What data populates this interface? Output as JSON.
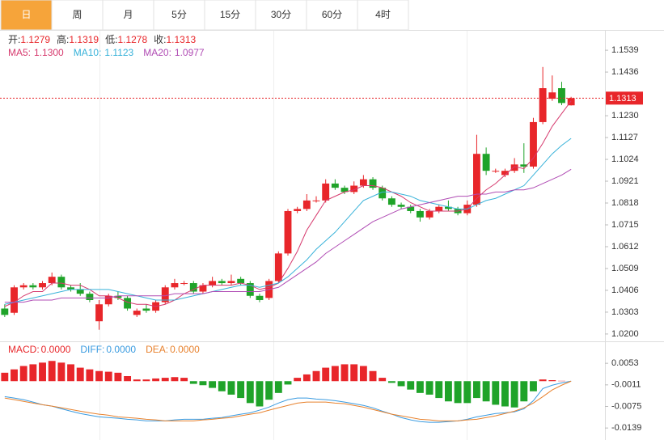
{
  "tabs": [
    "日",
    "周",
    "月",
    "5分",
    "15分",
    "30分",
    "60分",
    "4时"
  ],
  "active_tab": 0,
  "chart_data": [
    {
      "type": "candlestick",
      "up_color": "#e8262a",
      "down_color": "#1fa329",
      "last_price_color": "#e8262a",
      "ohlc_labels": [
        "开:",
        "高:",
        "低:",
        "收:"
      ],
      "ylim": [
        1.0173,
        1.1631
      ],
      "yticks": [
        {
          "value": 1.02,
          "label": "1.0200"
        },
        1.0303,
        1.0406,
        1.0509,
        1.0612,
        1.0715,
        1.0818,
        1.0921,
        1.1024,
        1.1127,
        {
          "value": 1.123,
          "label": "1.1230"
        },
        1.1436,
        1.1539
      ],
      "candles": [
        [
          1.032,
          1.034,
          1.028,
          1.029
        ],
        [
          1.03,
          1.043,
          1.029,
          1.042
        ],
        [
          1.042,
          1.044,
          1.041,
          1.043
        ],
        [
          1.043,
          1.044,
          1.041,
          1.042
        ],
        [
          1.042,
          1.045,
          1.041,
          1.044
        ],
        [
          1.044,
          1.049,
          1.043,
          1.047
        ],
        [
          1.047,
          1.048,
          1.041,
          1.042
        ],
        [
          1.042,
          1.043,
          1.04,
          1.041
        ],
        [
          1.041,
          1.044,
          1.038,
          1.039
        ],
        [
          1.039,
          1.04,
          1.035,
          1.036
        ],
        [
          1.026,
          1.036,
          1.022,
          1.034
        ],
        [
          1.034,
          1.039,
          1.033,
          1.038
        ],
        [
          1.038,
          1.04,
          1.036,
          1.037
        ],
        [
          1.037,
          1.038,
          1.031,
          1.032
        ],
        [
          1.029,
          1.032,
          1.028,
          1.031
        ],
        [
          1.032,
          1.034,
          1.03,
          1.031
        ],
        [
          1.031,
          1.036,
          1.03,
          1.035
        ],
        [
          1.035,
          1.043,
          1.034,
          1.042
        ],
        [
          1.042,
          1.046,
          1.041,
          1.044
        ],
        [
          1.044,
          1.045,
          1.043,
          1.044
        ],
        [
          1.044,
          1.045,
          1.039,
          1.04
        ],
        [
          1.04,
          1.044,
          1.039,
          1.043
        ],
        [
          1.043,
          1.047,
          1.042,
          1.045
        ],
        [
          1.045,
          1.046,
          1.043,
          1.044
        ],
        [
          1.044,
          1.048,
          1.043,
          1.045
        ],
        [
          1.046,
          1.047,
          1.043,
          1.044
        ],
        [
          1.044,
          1.045,
          1.037,
          1.038
        ],
        [
          1.038,
          1.039,
          1.035,
          1.036
        ],
        [
          1.037,
          1.046,
          1.036,
          1.045
        ],
        [
          1.045,
          1.059,
          1.044,
          1.058
        ],
        [
          1.058,
          1.079,
          1.057,
          1.078
        ],
        [
          1.078,
          1.08,
          1.077,
          1.079
        ],
        [
          1.079,
          1.086,
          1.078,
          1.083
        ],
        [
          1.083,
          1.085,
          1.082,
          1.083
        ],
        [
          1.083,
          1.093,
          1.082,
          1.091
        ],
        [
          1.091,
          1.093,
          1.088,
          1.089
        ],
        [
          1.089,
          1.09,
          1.086,
          1.087
        ],
        [
          1.087,
          1.092,
          1.086,
          1.09
        ],
        [
          1.09,
          1.095,
          1.089,
          1.093
        ],
        [
          1.093,
          1.094,
          1.088,
          1.089
        ],
        [
          1.089,
          1.09,
          1.083,
          1.084
        ],
        [
          1.084,
          1.085,
          1.08,
          1.081
        ],
        [
          1.081,
          1.082,
          1.079,
          1.08
        ],
        [
          1.08,
          1.081,
          1.077,
          1.078
        ],
        [
          1.078,
          1.079,
          1.073,
          1.075
        ],
        [
          1.075,
          1.079,
          1.074,
          1.078
        ],
        [
          1.078,
          1.081,
          1.077,
          1.08
        ],
        [
          1.08,
          1.083,
          1.078,
          1.079
        ],
        [
          1.079,
          1.08,
          1.076,
          1.077
        ],
        [
          1.077,
          1.083,
          1.076,
          1.081
        ],
        [
          1.081,
          1.114,
          1.08,
          1.105
        ],
        [
          1.105,
          1.108,
          1.095,
          1.097
        ],
        [
          1.097,
          1.098,
          1.096,
          1.097
        ],
        [
          1.095,
          1.098,
          1.094,
          1.097
        ],
        [
          1.097,
          1.103,
          1.096,
          1.1
        ],
        [
          1.1,
          1.11,
          1.096,
          1.099
        ],
        [
          1.099,
          1.122,
          1.098,
          1.12
        ],
        [
          1.12,
          1.146,
          1.119,
          1.136
        ],
        [
          1.131,
          1.142,
          1.13,
          1.134
        ],
        [
          1.136,
          1.139,
          1.128,
          1.129
        ],
        [
          1.1279,
          1.1319,
          1.1278,
          1.1313
        ]
      ],
      "series": [
        {
          "name": "MA5:",
          "color": "#d63a6e",
          "value_label": "1.1300",
          "values": [
            1.033,
            1.035,
            1.038,
            1.04,
            1.04,
            1.044,
            1.044,
            1.043,
            1.043,
            1.041,
            1.038,
            1.038,
            1.037,
            1.035,
            1.034,
            1.034,
            1.033,
            1.034,
            1.036,
            1.039,
            1.041,
            1.043,
            1.043,
            1.043,
            1.043,
            1.044,
            1.043,
            1.041,
            1.042,
            1.044,
            1.051,
            1.059,
            1.069,
            1.076,
            1.083,
            1.085,
            1.087,
            1.088,
            1.09,
            1.09,
            1.089,
            1.087,
            1.085,
            1.082,
            1.08,
            1.078,
            1.078,
            1.078,
            1.078,
            1.079,
            1.084,
            1.088,
            1.091,
            1.095,
            1.099,
            1.098,
            1.103,
            1.11,
            1.118,
            1.124,
            1.13
          ]
        },
        {
          "name": "MA10:",
          "color": "#38b2d9",
          "value_label": "1.1123",
          "values": [
            1.034,
            1.035,
            1.036,
            1.037,
            1.038,
            1.039,
            1.04,
            1.041,
            1.041,
            1.041,
            1.041,
            1.041,
            1.04,
            1.039,
            1.038,
            1.037,
            1.036,
            1.036,
            1.036,
            1.037,
            1.038,
            1.039,
            1.04,
            1.041,
            1.042,
            1.043,
            1.043,
            1.042,
            1.043,
            1.044,
            1.047,
            1.051,
            1.055,
            1.06,
            1.064,
            1.068,
            1.073,
            1.078,
            1.083,
            1.085,
            1.087,
            1.087,
            1.086,
            1.085,
            1.083,
            1.082,
            1.081,
            1.08,
            1.079,
            1.079,
            1.081,
            1.083,
            1.084,
            1.086,
            1.088,
            1.09,
            1.095,
            1.1,
            1.105,
            1.109,
            1.1123
          ]
        },
        {
          "name": "MA20:",
          "color": "#b04cb4",
          "value_label": "1.0977",
          "values": [
            1.035,
            1.035,
            1.035,
            1.036,
            1.036,
            1.036,
            1.037,
            1.037,
            1.037,
            1.037,
            1.037,
            1.037,
            1.038,
            1.038,
            1.038,
            1.038,
            1.038,
            1.038,
            1.039,
            1.039,
            1.039,
            1.039,
            1.04,
            1.04,
            1.04,
            1.04,
            1.04,
            1.04,
            1.041,
            1.042,
            1.045,
            1.048,
            1.051,
            1.054,
            1.058,
            1.061,
            1.064,
            1.067,
            1.07,
            1.073,
            1.075,
            1.077,
            1.079,
            1.08,
            1.081,
            1.082,
            1.083,
            1.084,
            1.085,
            1.085,
            1.086,
            1.086,
            1.087,
            1.087,
            1.088,
            1.088,
            1.089,
            1.091,
            1.093,
            1.095,
            1.0977
          ]
        }
      ]
    },
    {
      "type": "macd",
      "up_color": "#e8262a",
      "down_color": "#1fa329",
      "ylim": [
        -0.0165,
        0.0111
      ],
      "yticks": [
        0.0053,
        -0.0011,
        -0.0075,
        -0.0139
      ],
      "histogram": {
        "name": "MACD:",
        "color": "#e8262a",
        "value_label": "0.0000",
        "values": [
          0.0025,
          0.0035,
          0.0045,
          0.005,
          0.0055,
          0.006,
          0.0055,
          0.005,
          0.004,
          0.0035,
          0.003,
          0.0028,
          0.0025,
          0.0015,
          0.0005,
          0.0005,
          0.0008,
          0.001,
          0.0012,
          0.001,
          -0.0008,
          -0.0012,
          -0.002,
          -0.003,
          -0.004,
          -0.005,
          -0.0065,
          -0.0075,
          -0.0055,
          -0.0035,
          -0.001,
          0.001,
          0.002,
          0.003,
          0.004,
          0.0045,
          0.005,
          0.005,
          0.0045,
          0.003,
          0.001,
          -0.0005,
          -0.0015,
          -0.0025,
          -0.0035,
          -0.004,
          -0.005,
          -0.006,
          -0.0065,
          -0.0065,
          -0.005,
          -0.006,
          -0.007,
          -0.0075,
          -0.0078,
          -0.006,
          -0.003,
          0.0005,
          0.0003,
          0.0001,
          0
        ]
      },
      "series": [
        {
          "name": "DIFF:",
          "color": "#3a9be0",
          "value_label": "0.0000",
          "values": [
            -0.0046,
            -0.005,
            -0.0055,
            -0.0062,
            -0.007,
            -0.0074,
            -0.0082,
            -0.0089,
            -0.0096,
            -0.0101,
            -0.0106,
            -0.0108,
            -0.011,
            -0.0113,
            -0.0115,
            -0.0118,
            -0.0118,
            -0.0118,
            -0.0115,
            -0.0113,
            -0.0113,
            -0.0113,
            -0.011,
            -0.0108,
            -0.0103,
            -0.0098,
            -0.0094,
            -0.0086,
            -0.0077,
            -0.0065,
            -0.0055,
            -0.005,
            -0.005,
            -0.0053,
            -0.0055,
            -0.0058,
            -0.0062,
            -0.0067,
            -0.0072,
            -0.0079,
            -0.0089,
            -0.0098,
            -0.0108,
            -0.0115,
            -0.012,
            -0.0122,
            -0.0122,
            -0.012,
            -0.0118,
            -0.0113,
            -0.0106,
            -0.0101,
            -0.0096,
            -0.0094,
            -0.0091,
            -0.0082,
            -0.0058,
            -0.0022,
            -0.0012,
            -0.0005,
            0
          ]
        },
        {
          "name": "DEA:",
          "color": "#e8822e",
          "value_label": "0.0000",
          "values": [
            -0.005,
            -0.0055,
            -0.006,
            -0.0065,
            -0.007,
            -0.0074,
            -0.0079,
            -0.0084,
            -0.0089,
            -0.0094,
            -0.0098,
            -0.0101,
            -0.0106,
            -0.0108,
            -0.011,
            -0.0113,
            -0.0115,
            -0.0118,
            -0.0118,
            -0.0118,
            -0.0118,
            -0.0115,
            -0.0113,
            -0.011,
            -0.0108,
            -0.0103,
            -0.0098,
            -0.0094,
            -0.0086,
            -0.0079,
            -0.0072,
            -0.0065,
            -0.0062,
            -0.0062,
            -0.0062,
            -0.0065,
            -0.0067,
            -0.0072,
            -0.0077,
            -0.0084,
            -0.0091,
            -0.0098,
            -0.0103,
            -0.0108,
            -0.0113,
            -0.0115,
            -0.0118,
            -0.0118,
            -0.0118,
            -0.0115,
            -0.0113,
            -0.0108,
            -0.0103,
            -0.0096,
            -0.0089,
            -0.0079,
            -0.0065,
            -0.0046,
            -0.0026,
            -0.0012,
            0
          ]
        }
      ]
    }
  ]
}
